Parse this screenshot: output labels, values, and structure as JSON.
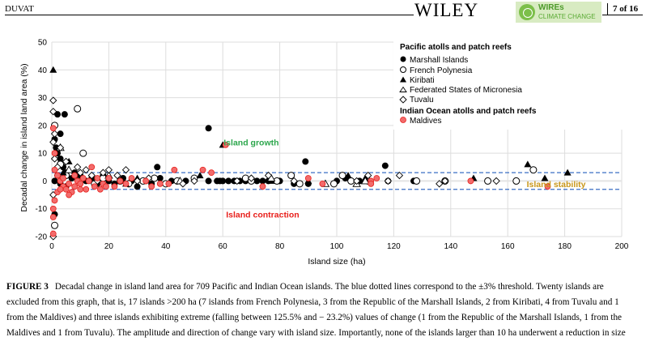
{
  "header": {
    "author": "DUVAT",
    "publisher": "WILEY",
    "journal_line1": "WIREs",
    "journal_line2": "CLIMATE CHANGE",
    "page": "7 of 16"
  },
  "chart_data": {
    "type": "scatter",
    "title": "",
    "xlabel": "Island size (ha)",
    "ylabel": "Decadal change in island land area (%)",
    "xlim": [
      0,
      200
    ],
    "ylim": [
      -20,
      50
    ],
    "xticks": [
      0,
      20,
      40,
      60,
      80,
      100,
      120,
      140,
      160,
      180,
      200
    ],
    "yticks": [
      -20,
      -10,
      0,
      10,
      20,
      30,
      40,
      50
    ],
    "grid": true,
    "thresholds": [
      3,
      -3
    ],
    "annotations": [
      {
        "text": "Island growth",
        "x": 70,
        "y": 14,
        "color": "#2ca64c"
      },
      {
        "text": "Island contraction",
        "x": 74,
        "y": -12,
        "color": "#e8201c"
      },
      {
        "text": "Island stability",
        "x": 177,
        "y": -1,
        "color": "#c8961a"
      }
    ],
    "legend": {
      "placement": "top-right",
      "groups": [
        {
          "heading": "Pacific atolls and patch reefs",
          "entries": [
            {
              "label": "Marshall Islands",
              "marker": "filled-circle"
            },
            {
              "label": "French Polynesia",
              "marker": "open-circle"
            },
            {
              "label": "Kiribati",
              "marker": "filled-triangle"
            },
            {
              "label": "Federated States of Micronesia",
              "marker": "open-triangle"
            },
            {
              "label": "Tuvalu",
              "marker": "open-diamond"
            }
          ]
        },
        {
          "heading": "Indian Ocean atolls and patch reefs",
          "entries": [
            {
              "label": "Maldives",
              "marker": "red-circle"
            }
          ]
        }
      ]
    },
    "series": [
      {
        "name": "Marshall Islands",
        "marker": "filled-circle",
        "points": [
          [
            1,
            15
          ],
          [
            1.5,
            12
          ],
          [
            2,
            10
          ],
          [
            3,
            8
          ],
          [
            4,
            5
          ],
          [
            5,
            3
          ],
          [
            2,
            2
          ],
          [
            1,
            0
          ],
          [
            3,
            -1
          ],
          [
            5,
            -2
          ],
          [
            7,
            1
          ],
          [
            8,
            3
          ],
          [
            10,
            2
          ],
          [
            12,
            0
          ],
          [
            14,
            1
          ],
          [
            16,
            -1
          ],
          [
            18,
            2
          ],
          [
            20,
            0
          ],
          [
            22,
            -1
          ],
          [
            25,
            1
          ],
          [
            28,
            0
          ],
          [
            30,
            -2
          ],
          [
            33,
            0
          ],
          [
            35,
            -1
          ],
          [
            38,
            1
          ],
          [
            42,
            0
          ],
          [
            47,
            0
          ],
          [
            55,
            0
          ],
          [
            58,
            0
          ],
          [
            59,
            0
          ],
          [
            60,
            0
          ],
          [
            62,
            0
          ],
          [
            64,
            0
          ],
          [
            66,
            0
          ],
          [
            68,
            0
          ],
          [
            72,
            0
          ],
          [
            74,
            0
          ],
          [
            76,
            0
          ],
          [
            80,
            0
          ],
          [
            85,
            -1
          ],
          [
            90,
            -1
          ],
          [
            100,
            0
          ],
          [
            108,
            0
          ],
          [
            118,
            0
          ],
          [
            127,
            0
          ],
          [
            37,
            5
          ],
          [
            55,
            19
          ],
          [
            89,
            7
          ],
          [
            103,
            1
          ],
          [
            117,
            5.5
          ],
          [
            3,
            17
          ],
          [
            4.5,
            24
          ],
          [
            2,
            24
          ],
          [
            1,
            -12
          ]
        ]
      },
      {
        "name": "French Polynesia",
        "marker": "open-circle",
        "points": [
          [
            1,
            20
          ],
          [
            9,
            26
          ],
          [
            11,
            10
          ],
          [
            3,
            6
          ],
          [
            5,
            2
          ],
          [
            15,
            -1
          ],
          [
            18,
            1
          ],
          [
            24,
            0
          ],
          [
            27,
            -1
          ],
          [
            32,
            0
          ],
          [
            36,
            1
          ],
          [
            40,
            -1
          ],
          [
            44,
            0
          ],
          [
            50,
            1
          ],
          [
            68,
            1
          ],
          [
            70,
            0
          ],
          [
            79,
            0
          ],
          [
            84,
            2
          ],
          [
            87,
            -1
          ],
          [
            99,
            -1
          ],
          [
            102,
            2
          ],
          [
            105,
            0
          ],
          [
            111,
            0
          ],
          [
            128,
            0
          ],
          [
            138,
            0
          ],
          [
            153,
            0
          ],
          [
            163,
            0
          ],
          [
            169,
            4
          ],
          [
            1,
            -16
          ]
        ]
      },
      {
        "name": "Kiribati",
        "marker": "filled-triangle",
        "points": [
          [
            0.5,
            40
          ],
          [
            6,
            7
          ],
          [
            4,
            3
          ],
          [
            8,
            2
          ],
          [
            26,
            -1
          ],
          [
            30,
            1
          ],
          [
            52,
            2
          ],
          [
            60,
            13
          ],
          [
            77,
            0
          ],
          [
            90,
            0
          ],
          [
            104,
            2
          ],
          [
            110,
            1
          ],
          [
            148,
            1
          ],
          [
            167,
            6
          ],
          [
            173,
            1
          ],
          [
            181,
            3
          ]
        ]
      },
      {
        "name": "Federated States of Micronesia",
        "marker": "open-triangle",
        "points": [
          [
            3,
            12
          ],
          [
            6,
            4
          ],
          [
            20,
            2
          ],
          [
            45,
            0
          ],
          [
            77,
            1
          ],
          [
            96,
            -1
          ],
          [
            107,
            -1
          ],
          [
            110,
            0
          ]
        ]
      },
      {
        "name": "Tuvalu",
        "marker": "open-diamond",
        "points": [
          [
            0.5,
            29
          ],
          [
            0.5,
            25
          ],
          [
            0.5,
            14
          ],
          [
            1,
            17
          ],
          [
            1,
            8
          ],
          [
            2,
            5
          ],
          [
            3,
            12
          ],
          [
            5,
            7
          ],
          [
            9,
            5
          ],
          [
            10,
            3
          ],
          [
            12,
            4
          ],
          [
            14,
            2
          ],
          [
            16,
            0
          ],
          [
            18,
            3
          ],
          [
            20,
            4
          ],
          [
            23,
            2
          ],
          [
            26,
            4
          ],
          [
            30,
            0
          ],
          [
            34,
            1
          ],
          [
            46,
            -1
          ],
          [
            50,
            0
          ],
          [
            65,
            0
          ],
          [
            70,
            1
          ],
          [
            76,
            2
          ],
          [
            85,
            0
          ],
          [
            107,
            0
          ],
          [
            111,
            2
          ],
          [
            118,
            0
          ],
          [
            122,
            2
          ],
          [
            136,
            -1
          ],
          [
            138,
            0
          ],
          [
            156,
            0
          ],
          [
            0.5,
            -5
          ],
          [
            0.5,
            -20
          ]
        ]
      },
      {
        "name": "Maldives",
        "marker": "red-circle",
        "points": [
          [
            0.5,
            19
          ],
          [
            1,
            10
          ],
          [
            1,
            4
          ],
          [
            2,
            2
          ],
          [
            3,
            0
          ],
          [
            4,
            -2
          ],
          [
            5,
            -3
          ],
          [
            6,
            -1
          ],
          [
            7,
            -4
          ],
          [
            8,
            -2
          ],
          [
            9,
            0
          ],
          [
            10,
            -1
          ],
          [
            11,
            1
          ],
          [
            12,
            -3
          ],
          [
            13,
            0
          ],
          [
            15,
            -2
          ],
          [
            16,
            1
          ],
          [
            18,
            -1
          ],
          [
            20,
            1
          ],
          [
            22,
            -2
          ],
          [
            24,
            0
          ],
          [
            26,
            -1
          ],
          [
            14,
            5
          ],
          [
            2,
            -4
          ],
          [
            1,
            -7
          ],
          [
            0.5,
            -10
          ],
          [
            0.5,
            -13
          ],
          [
            6,
            -5
          ],
          [
            3,
            -3
          ],
          [
            4,
            1
          ],
          [
            8,
            2
          ],
          [
            10,
            -3
          ],
          [
            17,
            -3
          ],
          [
            19,
            -2
          ],
          [
            28,
            1
          ],
          [
            33,
            0
          ],
          [
            35,
            -2
          ],
          [
            38,
            -1
          ],
          [
            41,
            -1
          ],
          [
            43,
            4
          ],
          [
            53,
            4
          ],
          [
            56,
            3
          ],
          [
            61,
            13
          ],
          [
            74,
            -2
          ],
          [
            90,
            1
          ],
          [
            95,
            -1
          ],
          [
            112,
            0
          ],
          [
            112,
            -1
          ],
          [
            114,
            1
          ],
          [
            147,
            0
          ],
          [
            174,
            -2
          ],
          [
            0.5,
            -19
          ]
        ]
      }
    ]
  },
  "caption": {
    "label": "FIGURE 3",
    "text": "Decadal change in island land area for 709 Pacific and Indian Ocean islands. The blue dotted lines correspond to the ±3% threshold. Twenty islands are excluded from this graph, that is, 17 islands >200 ha (7 islands from French Polynesia, 3 from the Republic of the Marshall Islands, 2 from Kiribati, 4 from Tuvalu and 1 from the Maldives) and three islands exhibiting extreme (falling between 125.5% and − 23.2%) values of change (1 from the Republic of the Marshall Islands, 1 from the Maldives and 1 from Tuvalu). The amplitude and direction of change vary with island size. Importantly, none of the islands larger than 10 ha underwent a reduction in size"
  },
  "colors": {
    "threshold_line": "#3a6fc4",
    "grid": "#dddddd",
    "maldives_fill": "#f26b6b",
    "maldives_stroke": "#e8201c",
    "growth": "#2ca64c",
    "contraction": "#e8201c",
    "stability": "#c8961a"
  }
}
